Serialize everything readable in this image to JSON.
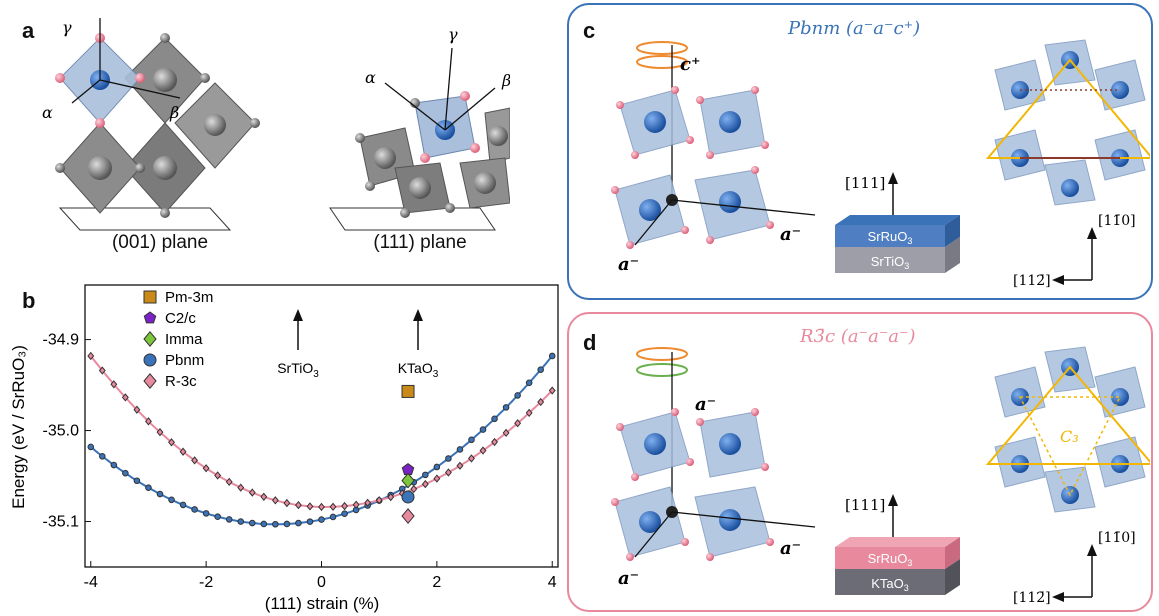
{
  "panels": {
    "a": {
      "label": "a",
      "plane1": "(001) plane",
      "plane2": "(111) plane",
      "greek_alpha": "α",
      "greek_beta": "β",
      "greek_gamma": "γ"
    },
    "b": {
      "label": "b",
      "substrate1": "SrTiO",
      "substrate1_sub": "3",
      "substrate2": "KTaO",
      "substrate2_sub": "3"
    },
    "c": {
      "label": "c",
      "title": "Pbnm (a⁻a⁻c⁺)",
      "axis_c": "c⁺",
      "axis_a1": "a⁻",
      "axis_a2": "a⁻",
      "dir111": "[111]",
      "film": "SrRuO",
      "film_sub": "3",
      "substrate": "SrTiO",
      "substrate_sub": "3",
      "dir_1m10": "[11̄0]",
      "dir_11m2": "[112̄]"
    },
    "d": {
      "label": "d",
      "title": "R3̄c (a⁻a⁻a⁻)",
      "axis_top": "a⁻",
      "axis_a1": "a⁻",
      "axis_a2": "a⁻",
      "dir111": "[111]",
      "film": "SrRuO",
      "film_sub": "3",
      "substrate": "KTaO",
      "substrate_sub": "3",
      "c3": "C₃",
      "dir_1m10": "[11̄0]",
      "dir_11m2": "[112̄]"
    }
  },
  "colors": {
    "pbnm_blue": "#3a73b8",
    "r3c_pink": "#e8899d",
    "pm3m": "#c98a1a",
    "c2c": "#7a22c8",
    "imma": "#7cc63c",
    "octa_gray": "#808080",
    "octa_blue": "#a9bfdc",
    "orange_arrow": "#ef8a2e",
    "green_arrow": "#6ab04c",
    "gold_triangle": "#f2b705"
  },
  "chart_data": {
    "type": "scatter",
    "xlabel": "(111) strain (%)",
    "ylabel": "Energy (eV / SrRuO₃)",
    "xlim": [
      -4.1,
      4.1
    ],
    "ylim": [
      -35.15,
      -34.84
    ],
    "xticks": [
      "-4",
      "-2",
      "0",
      "2",
      "4"
    ],
    "yticks": [
      "-34.9",
      "-35.0",
      "-35.1"
    ],
    "grid": false,
    "legend_position": "top-left",
    "series": [
      {
        "name": "Pm-3m",
        "marker": "square",
        "color": "#c98a1a",
        "x": [
          1.5
        ],
        "y": [
          -34.957
        ]
      },
      {
        "name": "C2/c",
        "marker": "pentagon",
        "color": "#7a22c8",
        "x": [
          1.5
        ],
        "y": [
          -35.043
        ]
      },
      {
        "name": "Imma",
        "marker": "diamond",
        "color": "#7cc63c",
        "x": [
          1.5
        ],
        "y": [
          -35.055
        ]
      },
      {
        "name": "Pbnm",
        "marker": "circle",
        "color": "#3a73b8",
        "x": [
          1.5
        ],
        "y": [
          -35.073
        ],
        "curve": {
          "x0": -0.8,
          "y0": -35.103,
          "yLeft": -35.018,
          "yRight": -34.918
        }
      },
      {
        "name": "R-3c",
        "marker": "diamond",
        "color": "#e8899d",
        "x": [
          1.5
        ],
        "y": [
          -35.094
        ],
        "curve": {
          "x0": 0.05,
          "y0": -35.084,
          "yLeft": -34.918,
          "yRight": -34.956
        }
      }
    ]
  }
}
